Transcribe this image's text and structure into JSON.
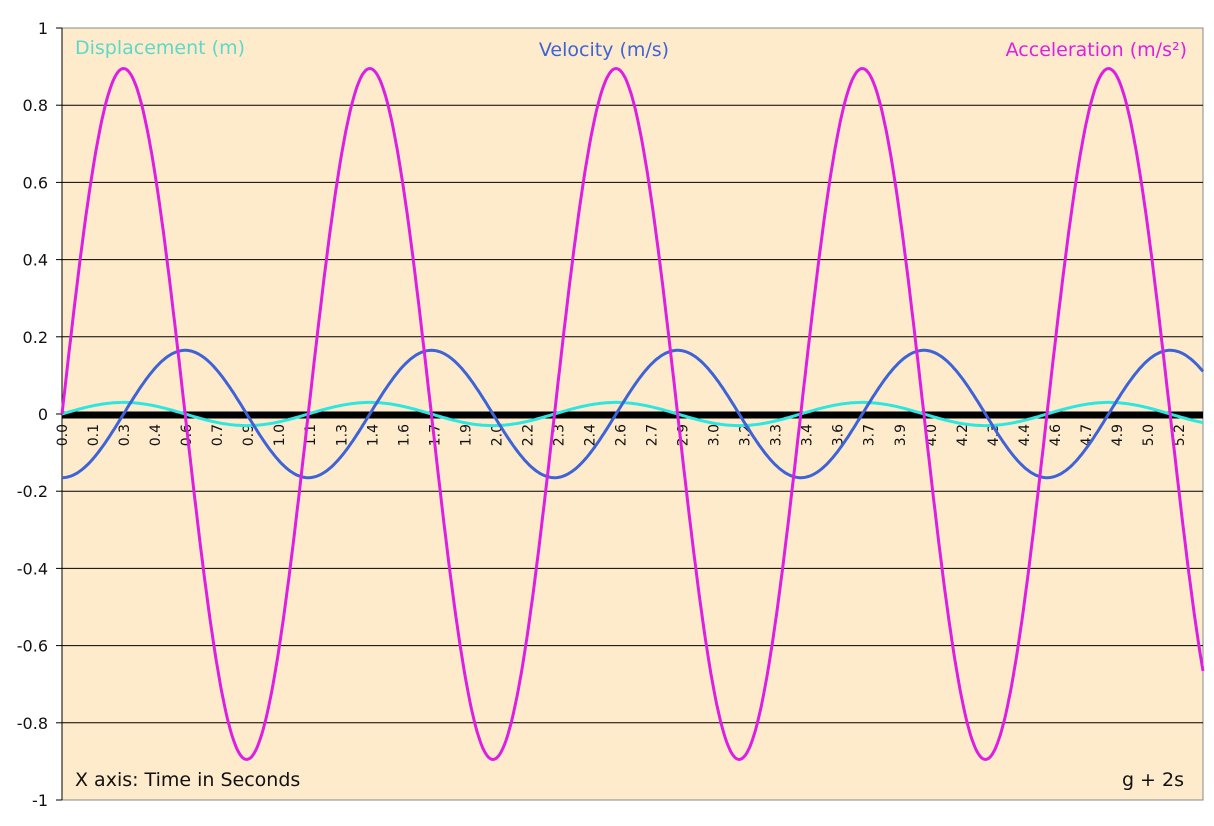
{
  "chart_data": {
    "type": "line",
    "title": "",
    "xlabel": "X axis: Time in Seconds",
    "ylabel": "",
    "annotation": "g + 2s",
    "ylim": [
      -1,
      1
    ],
    "xlim": [
      0,
      5.31
    ],
    "y_ticks": [
      "1",
      "0.8",
      "0.6",
      "0.4",
      "0.2",
      "0",
      "-0.2",
      "-0.4",
      "-0.6",
      "-0.8",
      "-1"
    ],
    "y_tick_values": [
      1,
      0.8,
      0.6,
      0.4,
      0.2,
      0,
      -0.2,
      -0.4,
      -0.6,
      -0.8,
      -1
    ],
    "x_tick_step": 0.1444,
    "x_ticks": [
      "0.0",
      "0.1",
      "0.3",
      "0.4",
      "0.6",
      "0.7",
      "0.9",
      "1.0",
      "1.1",
      "1.3",
      "1.4",
      "1.6",
      "1.7",
      "1.9",
      "2.0",
      "2.2",
      "2.3",
      "2.4",
      "2.6",
      "2.7",
      "2.9",
      "3.0",
      "3.2",
      "3.3",
      "3.4",
      "3.6",
      "3.7",
      "3.9",
      "4.0",
      "4.2",
      "4.3",
      "4.4",
      "4.6",
      "4.7",
      "4.9",
      "5.0",
      "5.2"
    ],
    "grid": true,
    "period_s": 1.146,
    "series": [
      {
        "name": "Displacement (m)",
        "amplitude": 0.03,
        "form": "sin",
        "color": "#2ee6e0",
        "label_color": "#5ed8c8",
        "legend": "top-left"
      },
      {
        "name": "Velocity (m/s)",
        "amplitude": 0.165,
        "form": "-cos",
        "color": "#3f63d6",
        "label_color": "#3f63d6",
        "legend": "top-center"
      },
      {
        "name": "Acceleration (m/s²)",
        "amplitude": 0.895,
        "form": "sin",
        "color": "#dd1fe0",
        "label_color": "#dd1fe0",
        "legend": "top-right"
      }
    ],
    "colors": {
      "plot_background": "#fdebcc",
      "grid": "#000000"
    }
  }
}
